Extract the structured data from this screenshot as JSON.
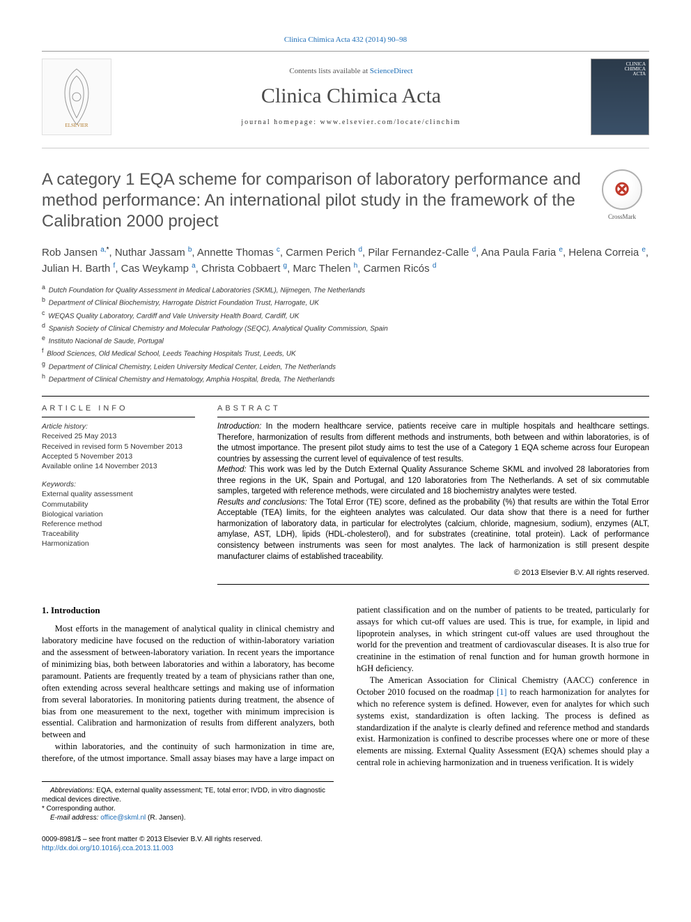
{
  "journal": {
    "ref_line": "Clinica Chimica Acta 432 (2014) 90–98",
    "contents_line_prefix": "Contents lists available at ",
    "contents_line_link": "ScienceDirect",
    "title": "Clinica Chimica Acta",
    "homepage_line": "journal homepage: www.elsevier.com/locate/clinchim",
    "cover_label": "CLINICA\nCHIMICA\nACTA"
  },
  "crossmark_label": "CrossMark",
  "article": {
    "title": "A category 1 EQA scheme for comparison of laboratory performance and method performance: An international pilot study in the framework of the Calibration 2000 project"
  },
  "authors": [
    {
      "name": "Rob Jansen",
      "aff": "a,",
      "ast": "*"
    },
    {
      "name": "Nuthar Jassam",
      "aff": "b"
    },
    {
      "name": "Annette Thomas",
      "aff": "c"
    },
    {
      "name": "Carmen Perich",
      "aff": "d"
    },
    {
      "name": "Pilar Fernandez-Calle",
      "aff": "d"
    },
    {
      "name": "Ana Paula Faria",
      "aff": "e"
    },
    {
      "name": "Helena Correia",
      "aff": "e"
    },
    {
      "name": "Julian H. Barth",
      "aff": "f"
    },
    {
      "name": "Cas Weykamp",
      "aff": "a"
    },
    {
      "name": "Christa Cobbaert",
      "aff": "g"
    },
    {
      "name": "Marc Thelen",
      "aff": "h"
    },
    {
      "name": "Carmen Ricós",
      "aff": "d"
    }
  ],
  "affiliations": [
    {
      "key": "a",
      "text": "Dutch Foundation for Quality Assessment in Medical Laboratories (SKML), Nijmegen, The Netherlands"
    },
    {
      "key": "b",
      "text": "Department of Clinical Biochemistry, Harrogate District Foundation Trust, Harrogate, UK"
    },
    {
      "key": "c",
      "text": "WEQAS Quality Laboratory, Cardiff and Vale University Health Board, Cardiff, UK"
    },
    {
      "key": "d",
      "text": "Spanish Society of Clinical Chemistry and Molecular Pathology (SEQC), Analytical Quality Commission, Spain"
    },
    {
      "key": "e",
      "text": "Instituto Nacional de Saude, Portugal"
    },
    {
      "key": "f",
      "text": "Blood Sciences, Old Medical School, Leeds Teaching Hospitals Trust, Leeds, UK"
    },
    {
      "key": "g",
      "text": "Department of Clinical Chemistry, Leiden University Medical Center, Leiden, The Netherlands"
    },
    {
      "key": "h",
      "text": "Department of Clinical Chemistry and Hematology, Amphia Hospital, Breda, The Netherlands"
    }
  ],
  "article_info": {
    "head": "ARTICLE INFO",
    "history_head": "Article history:",
    "received": "Received 25 May 2013",
    "revised": "Received in revised form 5 November 2013",
    "accepted": "Accepted 5 November 2013",
    "online": "Available online 14 November 2013",
    "kw_head": "Keywords:",
    "keywords": [
      "External quality assessment",
      "Commutability",
      "Biological variation",
      "Reference method",
      "Traceability",
      "Harmonization"
    ]
  },
  "abstract": {
    "head": "ABSTRACT",
    "intro_label": "Introduction:",
    "intro": " In the modern healthcare service, patients receive care in multiple hospitals and healthcare settings. Therefore, harmonization of results from different methods and instruments, both between and within laboratories, is of the utmost importance. The present pilot study aims to test the use of a Category 1 EQA scheme across four European countries by assessing the current level of equivalence of test results.",
    "method_label": "Method:",
    "method": " This work was led by the Dutch External Quality Assurance Scheme SKML and involved 28 laboratories from three regions in the UK, Spain and Portugal, and 120 laboratories from The Netherlands. A set of six commutable samples, targeted with reference methods, were circulated and 18 biochemistry analytes were tested.",
    "results_label": "Results and conclusions:",
    "results": " The Total Error (TE) score, defined as the probability (%) that results are within the Total Error Acceptable (TEA) limits, for the eighteen analytes was calculated. Our data show that there is a need for further harmonization of laboratory data, in particular for electrolytes (calcium, chloride, magnesium, sodium), enzymes (ALT, amylase, AST, LDH), lipids (HDL-cholesterol), and for substrates (creatinine, total protein). Lack of performance consistency between instruments was seen for most analytes. The lack of harmonization is still present despite manufacturer claims of established traceability.",
    "copyright": "© 2013 Elsevier B.V. All rights reserved."
  },
  "body": {
    "section_number": "1. Introduction",
    "p1": "Most efforts in the management of analytical quality in clinical chemistry and laboratory medicine have focused on the reduction of within-laboratory variation and the assessment of between-laboratory variation. In recent years the importance of minimizing bias, both between laboratories and within a laboratory, has become paramount. Patients are frequently treated by a team of physicians rather than one, often extending across several healthcare settings and making use of information from several laboratories. In monitoring patients during treatment, the absence of bias from one measurement to the next, together with minimum imprecision is essential. Calibration and harmonization of results from different analyzers, both between and",
    "p2": "within laboratories, and the continuity of such harmonization in time are, therefore, of the utmost importance. Small assay biases may have a large impact on patient classification and on the number of patients to be treated, particularly for assays for which cut-off values are used. This is true, for example, in lipid and lipoprotein analyses, in which stringent cut-off values are used throughout the world for the prevention and treatment of cardiovascular diseases. It is also true for creatinine in the estimation of renal function and for human growth hormone in hGH deficiency.",
    "p3a": "The American Association for Clinical Chemistry (AACC) conference in October 2010 focused on the roadmap ",
    "p3_cite": "[1]",
    "p3b": " to reach harmonization for analytes for which no reference system is defined. However, even for analytes for which such systems exist, standardization is often lacking. The process is defined as standardization if the analyte is clearly defined and reference method and standards exist. Harmonization is confined to describe processes where one or more of these elements are missing. External Quality Assessment (EQA) schemes should play a central role in achieving harmonization and in trueness verification. It is widely"
  },
  "footnotes": {
    "abbr_label": "Abbreviations:",
    "abbr": " EQA, external quality assessment; TE, total error; IVDD, in vitro diagnostic medical devices directive.",
    "corr": "* Corresponding author.",
    "email_label": "E-mail address: ",
    "email": "office@skml.nl",
    "email_name": " (R. Jansen)."
  },
  "footer": {
    "price": "0009-8981/$ – see front matter © 2013 Elsevier B.V. All rights reserved.",
    "doi": "http://dx.doi.org/10.1016/j.cca.2013.11.003"
  },
  "colors": {
    "link": "#1a6bb5",
    "title_gray": "#545454",
    "rule": "#000000"
  }
}
